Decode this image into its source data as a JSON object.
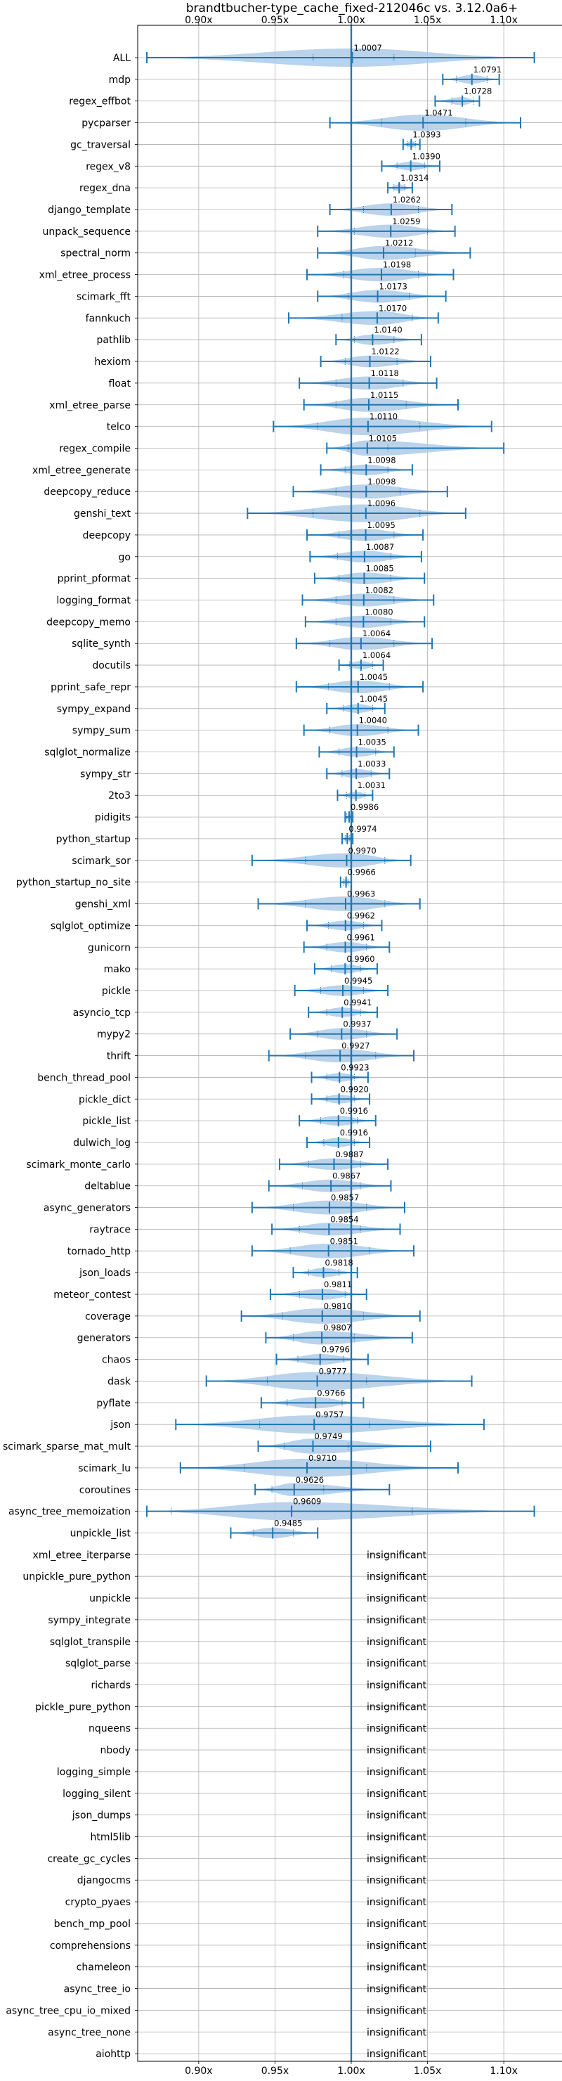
{
  "chart_data": {
    "type": "violin",
    "title": "brandtbucher-type_cache_fixed-212046c vs. 3.12.0a6+",
    "xlim": [
      0.86,
      1.14
    ],
    "xticks": [
      0.9,
      0.95,
      1.0,
      1.05,
      1.1
    ],
    "xtick_labels": [
      "0.90x",
      "0.95x",
      "1.00x",
      "1.05x",
      "1.10x"
    ],
    "baseline": 1.0,
    "grid": true,
    "colors": {
      "violin": "#a9c8e6",
      "line": "#1f77b4",
      "grid": "#b0b0b0"
    },
    "insignificant_label": "insignificant",
    "rows": [
      {
        "name": "ALL",
        "mean": 1.0007,
        "min": 0.866,
        "max": 1.12,
        "spread": 0.014,
        "q1": 0.975,
        "q3": 1.028
      },
      {
        "name": "mdp",
        "mean": 1.0791,
        "min": 1.06,
        "max": 1.097,
        "spread": 0.018,
        "q1": 1.069,
        "q3": 1.089
      },
      {
        "name": "regex_effbot",
        "mean": 1.0728,
        "min": 1.055,
        "max": 1.084,
        "spread": 0.014,
        "q1": 1.066,
        "q3": 1.08
      },
      {
        "name": "pycparser",
        "mean": 1.0471,
        "min": 0.986,
        "max": 1.111,
        "spread": 0.05,
        "q1": 1.02,
        "q3": 1.075
      },
      {
        "name": "gc_traversal",
        "mean": 1.0393,
        "min": 1.034,
        "max": 1.045,
        "spread": 0.006,
        "q1": 1.037,
        "q3": 1.042
      },
      {
        "name": "regex_v8",
        "mean": 1.039,
        "min": 1.02,
        "max": 1.058,
        "spread": 0.015,
        "q1": 1.03,
        "q3": 1.048
      },
      {
        "name": "regex_dna",
        "mean": 1.0314,
        "min": 1.024,
        "max": 1.04,
        "spread": 0.008,
        "q1": 1.028,
        "q3": 1.035
      },
      {
        "name": "django_template",
        "mean": 1.0262,
        "min": 0.986,
        "max": 1.066,
        "spread": 0.028,
        "q1": 1.008,
        "q3": 1.044
      },
      {
        "name": "unpack_sequence",
        "mean": 1.0259,
        "min": 0.978,
        "max": 1.068,
        "spread": 0.03,
        "q1": 1.002,
        "q3": 1.05
      },
      {
        "name": "spectral_norm",
        "mean": 1.0212,
        "min": 0.978,
        "max": 1.078,
        "spread": 0.028,
        "q1": 1.0,
        "q3": 1.042
      },
      {
        "name": "xml_etree_process",
        "mean": 1.0198,
        "min": 0.971,
        "max": 1.067,
        "spread": 0.03,
        "q1": 0.995,
        "q3": 1.044
      },
      {
        "name": "scimark_fft",
        "mean": 1.0173,
        "min": 0.978,
        "max": 1.062,
        "spread": 0.03,
        "q1": 0.998,
        "q3": 1.038
      },
      {
        "name": "fannkuch",
        "mean": 1.017,
        "min": 0.959,
        "max": 1.057,
        "spread": 0.032,
        "q1": 0.994,
        "q3": 1.04
      },
      {
        "name": "pathlib",
        "mean": 1.014,
        "min": 0.99,
        "max": 1.046,
        "spread": 0.02,
        "q1": 1.002,
        "q3": 1.028
      },
      {
        "name": "hexiom",
        "mean": 1.0122,
        "min": 0.98,
        "max": 1.052,
        "spread": 0.024,
        "q1": 0.996,
        "q3": 1.03
      },
      {
        "name": "float",
        "mean": 1.0118,
        "min": 0.966,
        "max": 1.056,
        "spread": 0.032,
        "q1": 0.99,
        "q3": 1.034
      },
      {
        "name": "xml_etree_parse",
        "mean": 1.0115,
        "min": 0.969,
        "max": 1.07,
        "spread": 0.03,
        "q1": 0.99,
        "q3": 1.036
      },
      {
        "name": "telco",
        "mean": 1.011,
        "min": 0.949,
        "max": 1.092,
        "spread": 0.05,
        "q1": 0.978,
        "q3": 1.045
      },
      {
        "name": "regex_compile",
        "mean": 1.0105,
        "min": 0.984,
        "max": 1.1,
        "spread": 0.022,
        "q1": 0.998,
        "q3": 1.024
      },
      {
        "name": "xml_etree_generate",
        "mean": 1.0098,
        "min": 0.98,
        "max": 1.04,
        "spread": 0.022,
        "q1": 0.996,
        "q3": 1.024
      },
      {
        "name": "deepcopy_reduce",
        "mean": 1.0098,
        "min": 0.962,
        "max": 1.063,
        "spread": 0.03,
        "q1": 0.99,
        "q3": 1.032
      },
      {
        "name": "genshi_text",
        "mean": 1.0096,
        "min": 0.932,
        "max": 1.075,
        "spread": 0.045,
        "q1": 0.975,
        "q3": 1.045
      },
      {
        "name": "deepcopy",
        "mean": 1.0095,
        "min": 0.971,
        "max": 1.047,
        "spread": 0.028,
        "q1": 0.992,
        "q3": 1.028
      },
      {
        "name": "go",
        "mean": 1.0087,
        "min": 0.973,
        "max": 1.046,
        "spread": 0.028,
        "q1": 0.991,
        "q3": 1.026
      },
      {
        "name": "pprint_pformat",
        "mean": 1.0085,
        "min": 0.976,
        "max": 1.048,
        "spread": 0.026,
        "q1": 0.992,
        "q3": 1.026
      },
      {
        "name": "logging_format",
        "mean": 1.0082,
        "min": 0.968,
        "max": 1.054,
        "spread": 0.028,
        "q1": 0.99,
        "q3": 1.028
      },
      {
        "name": "deepcopy_memo",
        "mean": 1.008,
        "min": 0.97,
        "max": 1.048,
        "spread": 0.028,
        "q1": 0.99,
        "q3": 1.026
      },
      {
        "name": "sqlite_synth",
        "mean": 1.0064,
        "min": 0.964,
        "max": 1.053,
        "spread": 0.03,
        "q1": 0.986,
        "q3": 1.028
      },
      {
        "name": "docutils",
        "mean": 1.0064,
        "min": 0.992,
        "max": 1.021,
        "spread": 0.01,
        "q1": 0.999,
        "q3": 1.014
      },
      {
        "name": "pprint_safe_repr",
        "mean": 1.0045,
        "min": 0.964,
        "max": 1.047,
        "spread": 0.03,
        "q1": 0.985,
        "q3": 1.025
      },
      {
        "name": "sympy_expand",
        "mean": 1.0045,
        "min": 0.984,
        "max": 1.022,
        "spread": 0.014,
        "q1": 0.995,
        "q3": 1.014
      },
      {
        "name": "sympy_sum",
        "mean": 1.004,
        "min": 0.969,
        "max": 1.044,
        "spread": 0.026,
        "q1": 0.986,
        "q3": 1.024
      },
      {
        "name": "sqlglot_normalize",
        "mean": 1.0035,
        "min": 0.979,
        "max": 1.028,
        "spread": 0.018,
        "q1": 0.992,
        "q3": 1.016
      },
      {
        "name": "sympy_str",
        "mean": 1.0033,
        "min": 0.984,
        "max": 1.025,
        "spread": 0.014,
        "q1": 0.994,
        "q3": 1.013
      },
      {
        "name": "2to3",
        "mean": 1.0031,
        "min": 0.991,
        "max": 1.014,
        "spread": 0.008,
        "q1": 0.997,
        "q3": 1.009
      },
      {
        "name": "pidigits",
        "mean": 0.9986,
        "min": 0.996,
        "max": 1.001,
        "spread": 0.002,
        "q1": 0.997,
        "q3": 1.0
      },
      {
        "name": "python_startup",
        "mean": 0.9974,
        "min": 0.994,
        "max": 1.001,
        "spread": 0.003,
        "q1": 0.996,
        "q3": 0.999
      },
      {
        "name": "scimark_sor",
        "mean": 0.997,
        "min": 0.935,
        "max": 1.039,
        "spread": 0.035,
        "q1": 0.97,
        "q3": 1.022
      },
      {
        "name": "python_startup_no_site",
        "mean": 0.9966,
        "min": 0.993,
        "max": 1.0,
        "spread": 0.003,
        "q1": 0.995,
        "q3": 0.998
      },
      {
        "name": "genshi_xml",
        "mean": 0.9963,
        "min": 0.939,
        "max": 1.045,
        "spread": 0.035,
        "q1": 0.97,
        "q3": 1.022
      },
      {
        "name": "sqlglot_optimize",
        "mean": 0.9962,
        "min": 0.971,
        "max": 1.02,
        "spread": 0.018,
        "q1": 0.985,
        "q3": 1.008
      },
      {
        "name": "gunicorn",
        "mean": 0.9961,
        "min": 0.969,
        "max": 1.025,
        "spread": 0.02,
        "q1": 0.984,
        "q3": 1.01
      },
      {
        "name": "mako",
        "mean": 0.996,
        "min": 0.976,
        "max": 1.017,
        "spread": 0.015,
        "q1": 0.987,
        "q3": 1.006
      },
      {
        "name": "pickle",
        "mean": 0.9945,
        "min": 0.963,
        "max": 1.024,
        "spread": 0.022,
        "q1": 0.98,
        "q3": 1.008
      },
      {
        "name": "asyncio_tcp",
        "mean": 0.9941,
        "min": 0.972,
        "max": 1.017,
        "spread": 0.016,
        "q1": 0.984,
        "q3": 1.006
      },
      {
        "name": "mypy2",
        "mean": 0.9937,
        "min": 0.96,
        "max": 1.03,
        "spread": 0.022,
        "q1": 0.978,
        "q3": 1.01
      },
      {
        "name": "thrift",
        "mean": 0.9927,
        "min": 0.946,
        "max": 1.041,
        "spread": 0.03,
        "q1": 0.97,
        "q3": 1.016
      },
      {
        "name": "bench_thread_pool",
        "mean": 0.9923,
        "min": 0.974,
        "max": 1.011,
        "spread": 0.014,
        "q1": 0.984,
        "q3": 1.002
      },
      {
        "name": "pickle_dict",
        "mean": 0.992,
        "min": 0.974,
        "max": 1.012,
        "spread": 0.014,
        "q1": 0.984,
        "q3": 1.002
      },
      {
        "name": "pickle_list",
        "mean": 0.9916,
        "min": 0.966,
        "max": 1.016,
        "spread": 0.018,
        "q1": 0.98,
        "q3": 1.004
      },
      {
        "name": "dulwich_log",
        "mean": 0.9916,
        "min": 0.971,
        "max": 1.012,
        "spread": 0.016,
        "q1": 0.982,
        "q3": 1.002
      },
      {
        "name": "scimark_monte_carlo",
        "mean": 0.9887,
        "min": 0.953,
        "max": 1.024,
        "spread": 0.026,
        "q1": 0.972,
        "q3": 1.006
      },
      {
        "name": "deltablue",
        "mean": 0.9867,
        "min": 0.946,
        "max": 1.026,
        "spread": 0.028,
        "q1": 0.968,
        "q3": 1.006
      },
      {
        "name": "async_generators",
        "mean": 0.9857,
        "min": 0.935,
        "max": 1.035,
        "spread": 0.032,
        "q1": 0.962,
        "q3": 1.01
      },
      {
        "name": "raytrace",
        "mean": 0.9854,
        "min": 0.948,
        "max": 1.032,
        "spread": 0.028,
        "q1": 0.966,
        "q3": 1.006
      },
      {
        "name": "tornado_http",
        "mean": 0.9851,
        "min": 0.935,
        "max": 1.041,
        "spread": 0.035,
        "q1": 0.96,
        "q3": 1.012
      },
      {
        "name": "json_loads",
        "mean": 0.9818,
        "min": 0.962,
        "max": 1.004,
        "spread": 0.014,
        "q1": 0.972,
        "q3": 0.992
      },
      {
        "name": "meteor_contest",
        "mean": 0.9811,
        "min": 0.947,
        "max": 1.01,
        "spread": 0.02,
        "q1": 0.966,
        "q3": 0.996
      },
      {
        "name": "coverage",
        "mean": 0.981,
        "min": 0.928,
        "max": 1.045,
        "spread": 0.035,
        "q1": 0.955,
        "q3": 1.008
      },
      {
        "name": "generators",
        "mean": 0.9807,
        "min": 0.944,
        "max": 1.04,
        "spread": 0.028,
        "q1": 0.962,
        "q3": 1.002
      },
      {
        "name": "chaos",
        "mean": 0.9796,
        "min": 0.951,
        "max": 1.011,
        "spread": 0.02,
        "q1": 0.965,
        "q3": 0.995
      },
      {
        "name": "dask",
        "mean": 0.9777,
        "min": 0.905,
        "max": 1.079,
        "spread": 0.045,
        "q1": 0.945,
        "q3": 1.01
      },
      {
        "name": "pyflate",
        "mean": 0.9766,
        "min": 0.941,
        "max": 1.008,
        "spread": 0.022,
        "q1": 0.958,
        "q3": 0.994
      },
      {
        "name": "json",
        "mean": 0.9757,
        "min": 0.885,
        "max": 1.087,
        "spread": 0.05,
        "q1": 0.94,
        "q3": 1.012
      },
      {
        "name": "scimark_sparse_mat_mult",
        "mean": 0.9749,
        "min": 0.939,
        "max": 1.052,
        "spread": 0.026,
        "q1": 0.956,
        "q3": 0.998
      },
      {
        "name": "scimark_lu",
        "mean": 0.971,
        "min": 0.888,
        "max": 1.07,
        "spread": 0.05,
        "q1": 0.93,
        "q3": 1.01
      },
      {
        "name": "coroutines",
        "mean": 0.9626,
        "min": 0.937,
        "max": 1.025,
        "spread": 0.024,
        "q1": 0.948,
        "q3": 0.982
      },
      {
        "name": "async_tree_memoization",
        "mean": 0.9609,
        "min": 0.866,
        "max": 1.12,
        "spread": 0.085,
        "q1": 0.882,
        "q3": 1.04
      },
      {
        "name": "unpickle_list",
        "mean": 0.9485,
        "min": 0.921,
        "max": 0.978,
        "spread": 0.022,
        "q1": 0.936,
        "q3": 0.962
      },
      {
        "name": "xml_etree_iterparse",
        "insignificant": true
      },
      {
        "name": "unpickle_pure_python",
        "insignificant": true
      },
      {
        "name": "unpickle",
        "insignificant": true
      },
      {
        "name": "sympy_integrate",
        "insignificant": true
      },
      {
        "name": "sqlglot_transpile",
        "insignificant": true
      },
      {
        "name": "sqlglot_parse",
        "insignificant": true
      },
      {
        "name": "richards",
        "insignificant": true
      },
      {
        "name": "pickle_pure_python",
        "insignificant": true
      },
      {
        "name": "nqueens",
        "insignificant": true
      },
      {
        "name": "nbody",
        "insignificant": true
      },
      {
        "name": "logging_simple",
        "insignificant": true
      },
      {
        "name": "logging_silent",
        "insignificant": true
      },
      {
        "name": "json_dumps",
        "insignificant": true
      },
      {
        "name": "html5lib",
        "insignificant": true
      },
      {
        "name": "create_gc_cycles",
        "insignificant": true
      },
      {
        "name": "djangocms",
        "insignificant": true
      },
      {
        "name": "crypto_pyaes",
        "insignificant": true
      },
      {
        "name": "bench_mp_pool",
        "insignificant": true
      },
      {
        "name": "comprehensions",
        "insignificant": true
      },
      {
        "name": "chameleon",
        "insignificant": true
      },
      {
        "name": "async_tree_io",
        "insignificant": true
      },
      {
        "name": "async_tree_cpu_io_mixed",
        "insignificant": true
      },
      {
        "name": "async_tree_none",
        "insignificant": true
      },
      {
        "name": "aiohttp",
        "insignificant": true
      }
    ]
  }
}
